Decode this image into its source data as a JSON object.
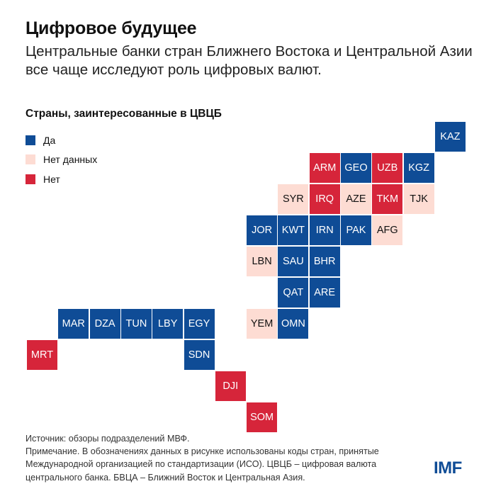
{
  "header": {
    "title": "Цифровое будущее",
    "subtitle": "Центральные банки стран Ближнего Востока и Центральной Азии все чаще исследуют роль цифровых валют."
  },
  "colors": {
    "yes": "#0F4C96",
    "no_data": "#FDDCD3",
    "no": "#D6253A"
  },
  "chart_data": {
    "type": "table",
    "title": "Страны, заинтересованные в ЦВЦБ",
    "legend": [
      {
        "key": "yes",
        "label": "Да"
      },
      {
        "key": "no_data",
        "label": "Нет данных"
      },
      {
        "key": "no",
        "label": "Нет"
      }
    ],
    "cells": [
      {
        "code": "KAZ",
        "status": "yes",
        "col": 13,
        "row": 0
      },
      {
        "code": "ARM",
        "status": "no",
        "col": 9,
        "row": 1
      },
      {
        "code": "GEO",
        "status": "yes",
        "col": 10,
        "row": 1
      },
      {
        "code": "UZB",
        "status": "no",
        "col": 11,
        "row": 1
      },
      {
        "code": "KGZ",
        "status": "yes",
        "col": 12,
        "row": 1
      },
      {
        "code": "SYR",
        "status": "no_data",
        "col": 8,
        "row": 2
      },
      {
        "code": "IRQ",
        "status": "no",
        "col": 9,
        "row": 2
      },
      {
        "code": "AZE",
        "status": "no_data",
        "col": 10,
        "row": 2
      },
      {
        "code": "TKM",
        "status": "no",
        "col": 11,
        "row": 2
      },
      {
        "code": "TJK",
        "status": "no_data",
        "col": 12,
        "row": 2
      },
      {
        "code": "JOR",
        "status": "yes",
        "col": 7,
        "row": 3
      },
      {
        "code": "KWT",
        "status": "yes",
        "col": 8,
        "row": 3
      },
      {
        "code": "IRN",
        "status": "yes",
        "col": 9,
        "row": 3
      },
      {
        "code": "PAK",
        "status": "yes",
        "col": 10,
        "row": 3
      },
      {
        "code": "AFG",
        "status": "no_data",
        "col": 11,
        "row": 3
      },
      {
        "code": "LBN",
        "status": "no_data",
        "col": 7,
        "row": 4
      },
      {
        "code": "SAU",
        "status": "yes",
        "col": 8,
        "row": 4
      },
      {
        "code": "BHR",
        "status": "yes",
        "col": 9,
        "row": 4
      },
      {
        "code": "QAT",
        "status": "yes",
        "col": 8,
        "row": 5
      },
      {
        "code": "ARE",
        "status": "yes",
        "col": 9,
        "row": 5
      },
      {
        "code": "MAR",
        "status": "yes",
        "col": 1,
        "row": 6
      },
      {
        "code": "DZA",
        "status": "yes",
        "col": 2,
        "row": 6
      },
      {
        "code": "TUN",
        "status": "yes",
        "col": 3,
        "row": 6
      },
      {
        "code": "LBY",
        "status": "yes",
        "col": 4,
        "row": 6
      },
      {
        "code": "EGY",
        "status": "yes",
        "col": 5,
        "row": 6
      },
      {
        "code": "YEM",
        "status": "no_data",
        "col": 7,
        "row": 6
      },
      {
        "code": "OMN",
        "status": "yes",
        "col": 8,
        "row": 6
      },
      {
        "code": "MRT",
        "status": "no",
        "col": 0,
        "row": 7
      },
      {
        "code": "SDN",
        "status": "yes",
        "col": 5,
        "row": 7
      },
      {
        "code": "DJI",
        "status": "no",
        "col": 6,
        "row": 8
      },
      {
        "code": "SOM",
        "status": "no",
        "col": 7,
        "row": 9
      }
    ]
  },
  "footer": {
    "source": "Источник: обзоры подразделений МВФ.",
    "note": "Примечание. В обозначениях данных в рисунке использованы коды стран, принятые Международной организацией по стандартизации (ИСО). ЦВЦБ – цифровая валюта центрального банка. БВЦА – Ближний Восток и Центральная Азия.",
    "logo": "IMF"
  }
}
